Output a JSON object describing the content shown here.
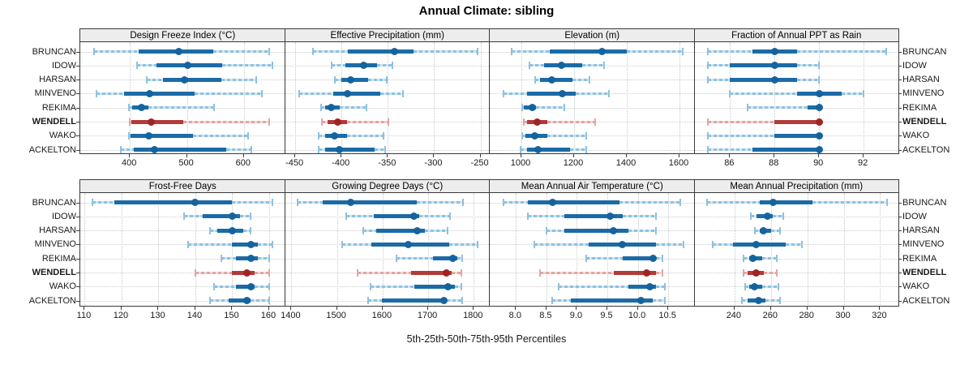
{
  "title": "Annual Climate: sibling",
  "caption": "5th-25th-50th-75th-95th Percentiles",
  "percentiles": [
    "5th",
    "25th",
    "50th",
    "75th",
    "95th"
  ],
  "stations": [
    "BRUNCAN",
    "IDOW",
    "HARSAN",
    "MINVENO",
    "REKIMA",
    "WENDELL",
    "WAKO",
    "ACKELTON"
  ],
  "highlight_station": "WENDELL",
  "colors": {
    "normal_dark": "#1b6ba6",
    "normal_light": "#8fc1de",
    "normal_light2": "#cfe4f1",
    "normal_dot": "#15639e",
    "highlight_dark": "#b23a38",
    "highlight_light": "#e0a6a5",
    "highlight_light2": "#f2d6d5",
    "highlight_dot": "#9f2523",
    "grid": "#c9c9c9",
    "strip_bg": "#ededed",
    "border": "#3a3a3a"
  },
  "chart_data": {
    "type": "dotplot-percentiles",
    "title": "Annual Climate: sibling",
    "xlabel": "5th-25th-50th-75th-95th Percentiles",
    "grid": true,
    "legend": "none",
    "note": "Each station row shows [5th, 25th, 50th, 75th, 95th] percentile values; dot = median, thick bar = 25th-75th, light whisker = outer percentiles.",
    "panels": [
      {
        "grid_row": 0,
        "title": "Design Freeze Index (°C)",
        "axis_range": [
          313,
          672
        ],
        "ticks": [
          400,
          500,
          600
        ],
        "tick_labels": [
          "400",
          "500",
          "600"
        ],
        "values": {
          "BRUNCAN": [
            337,
            415,
            486,
            546,
            644
          ],
          "IDOW": [
            413,
            446,
            502,
            562,
            650
          ],
          "HARSAN": [
            429,
            458,
            496,
            560,
            621
          ],
          "MINVENO": [
            342,
            390,
            435,
            513,
            631
          ],
          "REKIMA": [
            399,
            404,
            420,
            432,
            548
          ],
          "WENDELL": [
            400,
            402,
            437,
            494,
            644
          ],
          "WAKO": [
            398,
            401,
            433,
            510,
            608
          ],
          "ACKELTON": [
            384,
            407,
            443,
            569,
            613
          ]
        }
      },
      {
        "grid_row": 0,
        "title": "Effective Precipitation (mm)",
        "axis_range": [
          -461,
          -240
        ],
        "ticks": [
          -450,
          -400,
          -350,
          -300,
          -250
        ],
        "tick_labels": [
          "-450",
          "-400",
          "-350",
          "-300",
          "-250"
        ],
        "values": {
          "BRUNCAN": [
            -431,
            -393,
            -343,
            -322,
            -253
          ],
          "IDOW": [
            -411,
            -396,
            -376,
            -362,
            -345
          ],
          "HARSAN": [
            -407,
            -400,
            -390,
            -371,
            -351
          ],
          "MINVENO": [
            -446,
            -409,
            -394,
            -358,
            -334
          ],
          "REKIMA": [
            -422,
            -418,
            -411,
            -402,
            -373
          ],
          "WENDELL": [
            -421,
            -415,
            -404,
            -394,
            -349
          ],
          "WAKO": [
            -425,
            -418,
            -408,
            -394,
            -355
          ],
          "ACKELTON": [
            -425,
            -418,
            -402,
            -364,
            -353
          ]
        }
      },
      {
        "grid_row": 0,
        "title": "Elevation (m)",
        "axis_range": [
          880,
          1657
        ],
        "ticks": [
          1000,
          1200,
          1400,
          1600
        ],
        "tick_labels": [
          "1000",
          "1200",
          "1400",
          "1600"
        ],
        "values": {
          "BRUNCAN": [
            962,
            1108,
            1305,
            1400,
            1613
          ],
          "IDOW": [
            1031,
            1087,
            1152,
            1231,
            1313
          ],
          "HARSAN": [
            1051,
            1072,
            1115,
            1195,
            1258
          ],
          "MINVENO": [
            931,
            1021,
            1154,
            1205,
            1331
          ],
          "REKIMA": [
            1002,
            1010,
            1041,
            1056,
            1164
          ],
          "WENDELL": [
            1008,
            1021,
            1059,
            1097,
            1280
          ],
          "WAKO": [
            1003,
            1015,
            1051,
            1097,
            1246
          ],
          "ACKELTON": [
            998,
            1021,
            1062,
            1185,
            1246
          ]
        }
      },
      {
        "grid_row": 0,
        "title": "Fraction of Annual PPT as Rain",
        "axis_range": [
          84.4,
          93.6
        ],
        "ticks": [
          86,
          88,
          90,
          92
        ],
        "tick_labels": [
          "86",
          "88",
          "90",
          "92"
        ],
        "values": {
          "BRUNCAN": [
            85,
            87,
            88,
            89,
            93
          ],
          "IDOW": [
            85,
            86,
            88,
            89,
            90
          ],
          "HARSAN": [
            85,
            86,
            88,
            89,
            90
          ],
          "MINVENO": [
            86,
            89,
            90,
            91,
            92
          ],
          "REKIMA": [
            86.8,
            89.5,
            90,
            90,
            90
          ],
          "WENDELL": [
            85,
            88,
            90,
            90,
            90
          ],
          "WAKO": [
            85,
            88,
            90,
            90,
            90
          ],
          "ACKELTON": [
            85,
            87,
            90,
            90,
            90
          ]
        }
      },
      {
        "grid_row": 1,
        "title": "Frost-Free Days",
        "axis_range": [
          108.8,
          164.3
        ],
        "ticks": [
          110,
          120,
          130,
          140,
          150,
          160
        ],
        "tick_labels": [
          "110",
          "120",
          "130",
          "140",
          "150",
          "160"
        ],
        "values": {
          "BRUNCAN": [
            112,
            118,
            140,
            150,
            161
          ],
          "IDOW": [
            137,
            142,
            150,
            152,
            155
          ],
          "HARSAN": [
            144,
            146,
            150,
            153,
            155
          ],
          "MINVENO": [
            138,
            150,
            155,
            157,
            161
          ],
          "REKIMA": [
            147,
            151,
            155,
            157,
            160
          ],
          "WENDELL": [
            140,
            150,
            154,
            156,
            160
          ],
          "WAKO": [
            145,
            151,
            155,
            156,
            160
          ],
          "ACKELTON": [
            144,
            149,
            154,
            155,
            160
          ]
        }
      },
      {
        "grid_row": 1,
        "title": "Growing Degree Days (°C)",
        "axis_range": [
          1386,
          1835
        ],
        "ticks": [
          1400,
          1500,
          1600,
          1700,
          1800
        ],
        "tick_labels": [
          "1400",
          "1500",
          "1600",
          "1700",
          "1800"
        ],
        "values": {
          "BRUNCAN": [
            1414,
            1468,
            1530,
            1675,
            1776
          ],
          "IDOW": [
            1521,
            1580,
            1668,
            1681,
            1747
          ],
          "HARSAN": [
            1558,
            1586,
            1675,
            1693,
            1743
          ],
          "MINVENO": [
            1512,
            1575,
            1656,
            1746,
            1808
          ],
          "REKIMA": [
            1631,
            1711,
            1754,
            1764,
            1775
          ],
          "WENDELL": [
            1546,
            1663,
            1739,
            1752,
            1773
          ],
          "WAKO": [
            1573,
            1669,
            1744,
            1758,
            1773
          ],
          "ACKELTON": [
            1569,
            1598,
            1734,
            1740,
            1775
          ]
        }
      },
      {
        "grid_row": 1,
        "title": "Mean Annual Air Temperature (°C)",
        "axis_range": [
          7.57,
          10.93
        ],
        "ticks": [
          8.0,
          8.5,
          9.0,
          9.5,
          10.0,
          10.5
        ],
        "tick_labels": [
          "8.0",
          "8.5",
          "9.0",
          "9.5",
          "10.0",
          "10.5"
        ],
        "values": {
          "BRUNCAN": [
            7.8,
            8.2,
            8.6,
            9.7,
            10.7
          ],
          "IDOW": [
            8.2,
            8.8,
            9.55,
            9.75,
            10.3
          ],
          "HARSAN": [
            8.5,
            8.8,
            9.6,
            9.85,
            10.3
          ],
          "MINVENO": [
            8.3,
            9.2,
            9.75,
            10.3,
            10.75
          ],
          "REKIMA": [
            9.15,
            9.75,
            10.25,
            10.3,
            10.4
          ],
          "WENDELL": [
            8.4,
            9.6,
            10.15,
            10.3,
            10.4
          ],
          "WAKO": [
            8.7,
            9.85,
            10.2,
            10.3,
            10.45
          ],
          "ACKELTON": [
            8.6,
            8.9,
            10.05,
            10.25,
            10.45
          ]
        }
      },
      {
        "grid_row": 1,
        "title": "Mean Annual Precipitation (mm)",
        "axis_range": [
          218,
          330.5
        ],
        "ticks": [
          240,
          260,
          280,
          300,
          320
        ],
        "tick_labels": [
          "240",
          "260",
          "280",
          "300",
          "320"
        ],
        "values": {
          "BRUNCAN": [
            225,
            254,
            261,
            283,
            324
          ],
          "IDOW": [
            249,
            252,
            258,
            261,
            267
          ],
          "HARSAN": [
            251,
            254,
            256,
            260,
            265
          ],
          "MINVENO": [
            228,
            239,
            252,
            268,
            277
          ],
          "REKIMA": [
            245,
            248,
            250,
            255,
            263
          ],
          "WENDELL": [
            245,
            247,
            252,
            256,
            263
          ],
          "WAKO": [
            246,
            248,
            251,
            255,
            264
          ],
          "ACKELTON": [
            244,
            247,
            253,
            257,
            265
          ]
        }
      }
    ]
  }
}
